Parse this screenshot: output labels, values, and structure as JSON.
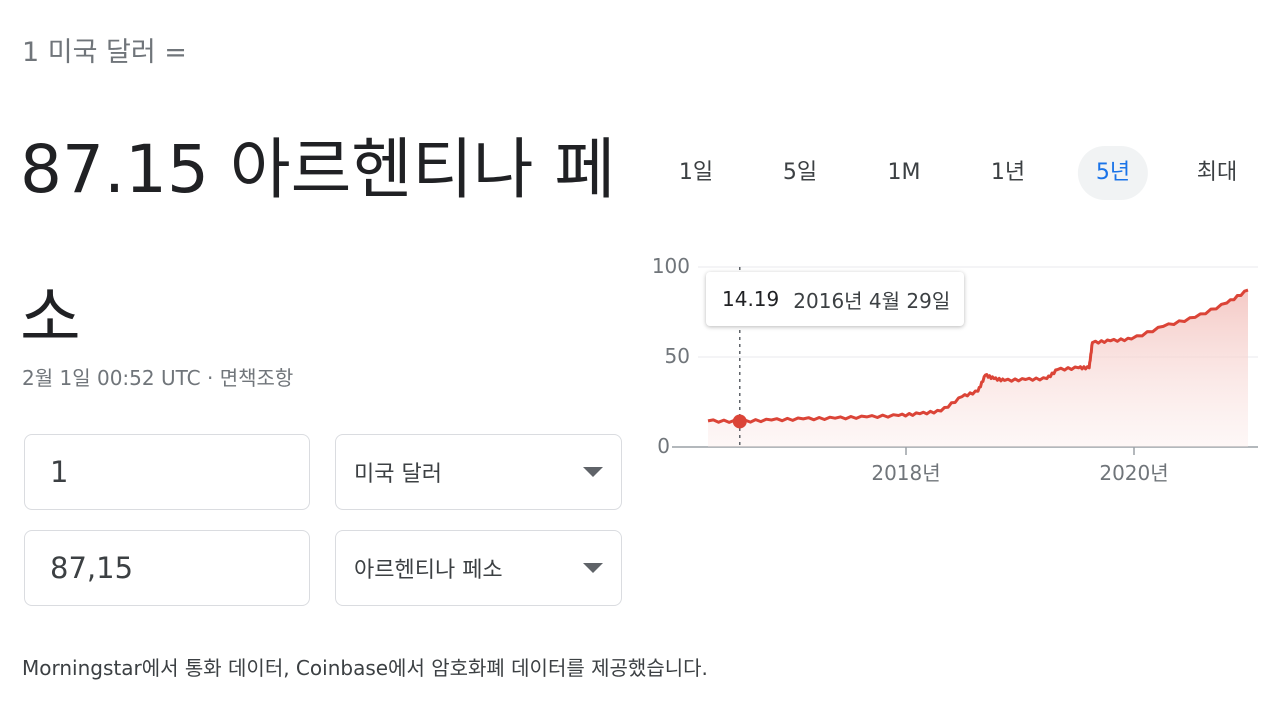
{
  "header": {
    "equation": "1 미국 달러 =",
    "result_line1": "87.15 아르헨티나 페",
    "result_line2": "소",
    "timestamp": "2월 1일 00:52 UTC",
    "separator": " · ",
    "disclaimer": "면책조항"
  },
  "converter": {
    "from_amount": "1",
    "from_currency": "미국 달러",
    "to_amount": "87,15",
    "to_currency": "아르헨티나 페소"
  },
  "source_text": "Morningstar에서 통화 데이터, Coinbase에서 암호화폐 데이터를 제공했습니다.",
  "range_tabs": [
    {
      "label": "1일",
      "active": false
    },
    {
      "label": "5일",
      "active": false
    },
    {
      "label": "1M",
      "active": false
    },
    {
      "label": "1년",
      "active": false
    },
    {
      "label": "5년",
      "active": true
    },
    {
      "label": "최대",
      "active": false
    }
  ],
  "tooltip": {
    "value": "14.19",
    "date": "2016년 4월 29일"
  },
  "colors": {
    "line": "#db4437",
    "fill": "#f4c7c3",
    "active_tab": "#1a73e8"
  },
  "chart_data": {
    "type": "area",
    "y_ticks": [
      "100",
      "50",
      "0"
    ],
    "x_ticks": [
      "2018년",
      "2020년"
    ],
    "ylim": [
      0,
      100
    ],
    "x": [
      2016.0,
      2016.3,
      2016.6,
      2016.9,
      2017.2,
      2017.5,
      2017.8,
      2018.0,
      2018.2,
      2018.4,
      2018.55,
      2018.62,
      2018.7,
      2018.8,
      2019.0,
      2019.2,
      2019.3,
      2019.5,
      2019.6,
      2019.63,
      2019.8,
      2020.0,
      2020.3,
      2020.6,
      2020.9,
      2021.1
    ],
    "y": [
      14.5,
      14.19,
      15,
      15.6,
      16,
      16.7,
      17.5,
      18.5,
      20,
      28,
      31,
      40,
      38,
      37,
      37.5,
      38,
      43,
      44,
      44,
      58,
      59,
      60,
      67,
      72,
      80,
      87.15
    ],
    "highlight": {
      "x": 2016.3,
      "y": 14.19
    }
  }
}
